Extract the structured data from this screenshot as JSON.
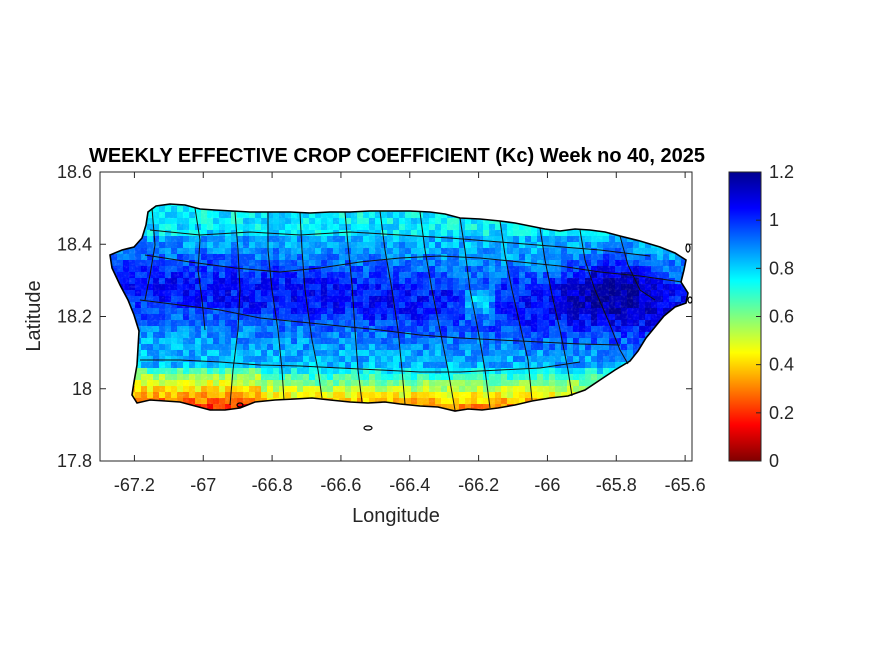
{
  "chart_data": {
    "type": "heatmap",
    "title": "WEEKLY EFFECTIVE CROP COEFFICIENT (Kc) Week no 40, 2025",
    "xlabel": "Longitude",
    "ylabel": "Latitude",
    "xlim": [
      -67.3,
      -65.58
    ],
    "ylim": [
      17.8,
      18.6
    ],
    "xticks": [
      -67.2,
      -67,
      -66.8,
      -66.6,
      -66.4,
      -66.2,
      -66,
      -65.8,
      -65.6
    ],
    "xtick_labels": [
      "-67.2",
      "-67",
      "-66.8",
      "-66.6",
      "-66.4",
      "-66.2",
      "-66",
      "-65.8",
      "-65.6"
    ],
    "yticks": [
      17.8,
      18,
      18.2,
      18.4,
      18.6
    ],
    "ytick_labels": [
      "17.8",
      "18",
      "18.2",
      "18.4",
      "18.6"
    ],
    "colorbar": {
      "range": [
        0,
        1.2
      ],
      "ticks": [
        0,
        0.2,
        0.4,
        0.6,
        0.8,
        1,
        1.2
      ],
      "tick_labels": [
        "0",
        "0.2",
        "0.4",
        "0.6",
        "0.8",
        "1",
        "1.2"
      ],
      "colormap": "jet"
    }
  }
}
